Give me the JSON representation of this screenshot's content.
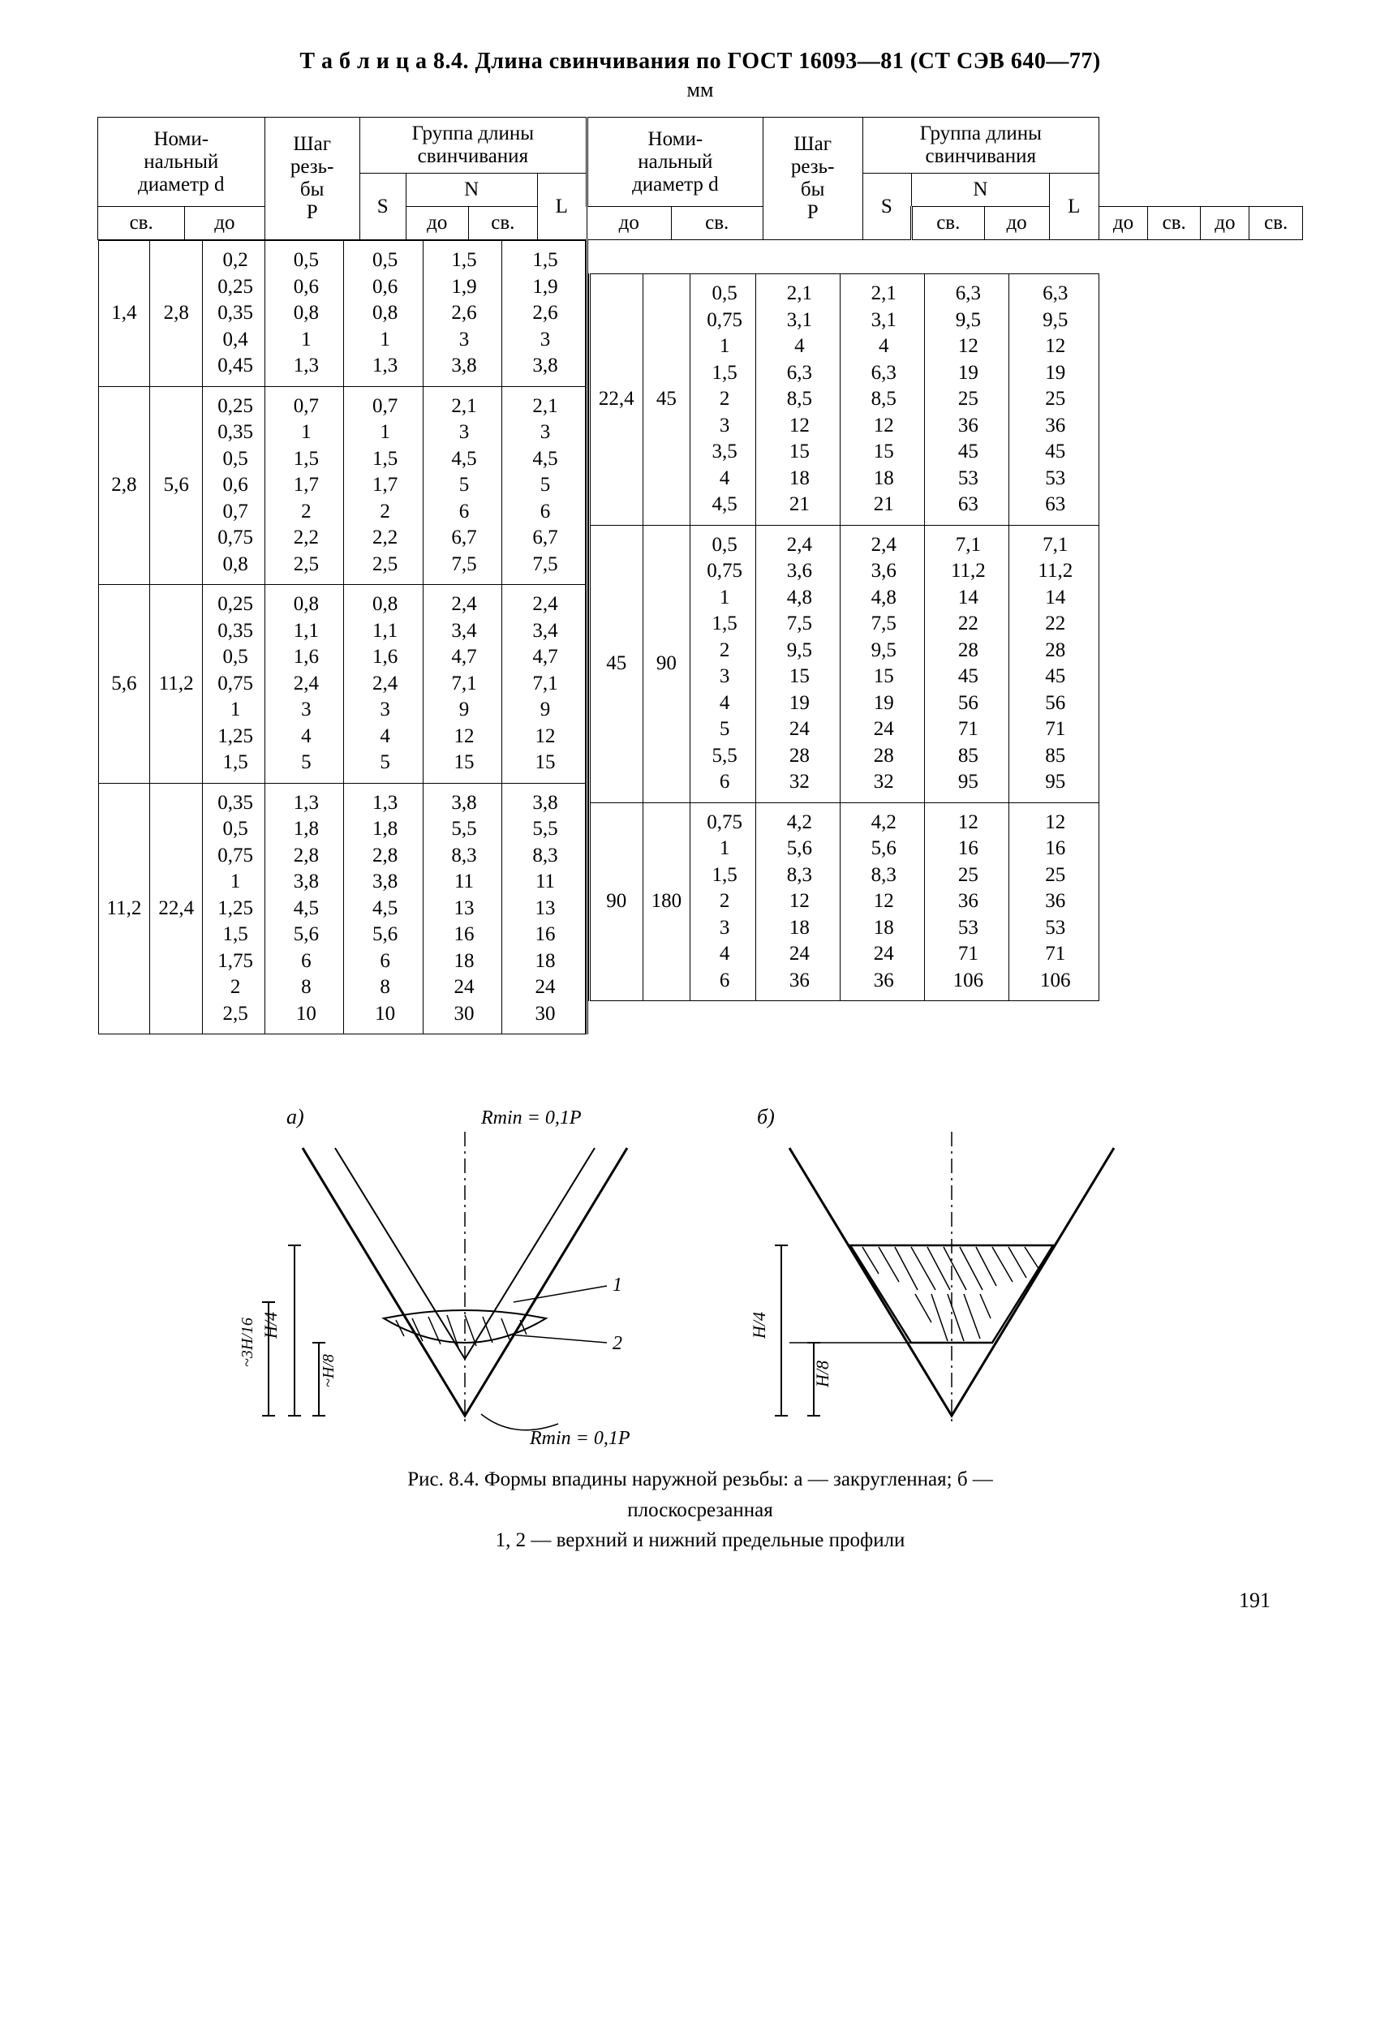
{
  "title_prefix": "Т а б л и ц а 8.4.",
  "title_main": "Длина свинчивания по ГОСТ 16093—81 (СТ СЭВ 640—77)",
  "title_unit": "мм",
  "headers": {
    "nominal_d": "Номи-\nнальный\nдиаметр d",
    "pitch": "Шаг\nрезь-\nбы\nP",
    "group": "Группа длины\nсвинчивания",
    "S": "S",
    "N": "N",
    "L": "L",
    "sv": "св.",
    "do": "до"
  },
  "left": [
    {
      "d_sv": "1,4",
      "d_do": "2,8",
      "P": "0,2\n0,25\n0,35\n0,4\n0,45",
      "S": "0,5\n0,6\n0,8\n1\n1,3",
      "Nsv": "0,5\n0,6\n0,8\n1\n1,3",
      "Ndo": "1,5\n1,9\n2,6\n3\n3,8",
      "L": "1,5\n1,9\n2,6\n3\n3,8"
    },
    {
      "d_sv": "2,8",
      "d_do": "5,6",
      "P": "0,25\n0,35\n0,5\n0,6\n0,7\n0,75\n0,8",
      "S": "0,7\n1\n1,5\n1,7\n2\n2,2\n2,5",
      "Nsv": "0,7\n1\n1,5\n1,7\n2\n2,2\n2,5",
      "Ndo": "2,1\n3\n4,5\n5\n6\n6,7\n7,5",
      "L": "2,1\n3\n4,5\n5\n6\n6,7\n7,5"
    },
    {
      "d_sv": "5,6",
      "d_do": "11,2",
      "P": "0,25\n0,35\n0,5\n0,75\n1\n1,25\n1,5",
      "S": "0,8\n1,1\n1,6\n2,4\n3\n4\n5",
      "Nsv": "0,8\n1,1\n1,6\n2,4\n3\n4\n5",
      "Ndo": "2,4\n3,4\n4,7\n7,1\n9\n12\n15",
      "L": "2,4\n3,4\n4,7\n7,1\n9\n12\n15"
    },
    {
      "d_sv": "11,2",
      "d_do": "22,4",
      "P": "0,35\n0,5\n0,75\n1\n1,25\n1,5\n1,75\n2\n2,5",
      "S": "1,3\n1,8\n2,8\n3,8\n4,5\n5,6\n6\n8\n10",
      "Nsv": "1,3\n1,8\n2,8\n3,8\n4,5\n5,6\n6\n8\n10",
      "Ndo": "3,8\n5,5\n8,3\n11\n13\n16\n18\n24\n30",
      "L": "3,8\n5,5\n8,3\n11\n13\n16\n18\n24\n30"
    }
  ],
  "right": [
    {
      "d_sv": "22,4",
      "d_do": "45",
      "P": "0,5\n0,75\n1\n1,5\n2\n3\n3,5\n4\n4,5",
      "S": "2,1\n3,1\n4\n6,3\n8,5\n12\n15\n18\n21",
      "Nsv": "2,1\n3,1\n4\n6,3\n8,5\n12\n15\n18\n21",
      "Ndo": "6,3\n9,5\n12\n19\n25\n36\n45\n53\n63",
      "L": "6,3\n9,5\n12\n19\n25\n36\n45\n53\n63"
    },
    {
      "d_sv": "45",
      "d_do": "90",
      "P": "0,5\n0,75\n1\n1,5\n2\n3\n4\n5\n5,5\n6",
      "S": "2,4\n3,6\n4,8\n7,5\n9,5\n15\n19\n24\n28\n32",
      "Nsv": "2,4\n3,6\n4,8\n7,5\n9,5\n15\n19\n24\n28\n32",
      "Ndo": "7,1\n11,2\n14\n22\n28\n45\n56\n71\n85\n95",
      "L": "7,1\n11,2\n14\n22\n28\n45\n56\n71\n85\n95"
    },
    {
      "d_sv": "90",
      "d_do": "180",
      "P": "0,75\n1\n1,5\n2\n3\n4\n6",
      "S": "4,2\n5,6\n8,3\n12\n18\n24\n36",
      "Nsv": "4,2\n5,6\n8,3\n12\n18\n24\n36",
      "Ndo": "12\n16\n25\n36\n53\n71\n106",
      "L": "12\n16\n25\n36\n53\n71\n106"
    }
  ],
  "fig": {
    "label_a": "a)",
    "label_b": "б)",
    "rmin1": "Rmin = 0,1P",
    "rmin2": "Rmin = 0,1P",
    "H4": "H/4",
    "H8": "H/8",
    "H3_16": "~3H/16",
    "H8b": "~H/8",
    "ref1": "1",
    "ref2": "2"
  },
  "caption_l1": "Рис. 8.4. Формы впадины наружной резьбы:  a — закругленная;  б —",
  "caption_l2": "плоскосрезанная",
  "caption_l3": "1, 2 — верхний и нижний предельные профили",
  "page": "191"
}
